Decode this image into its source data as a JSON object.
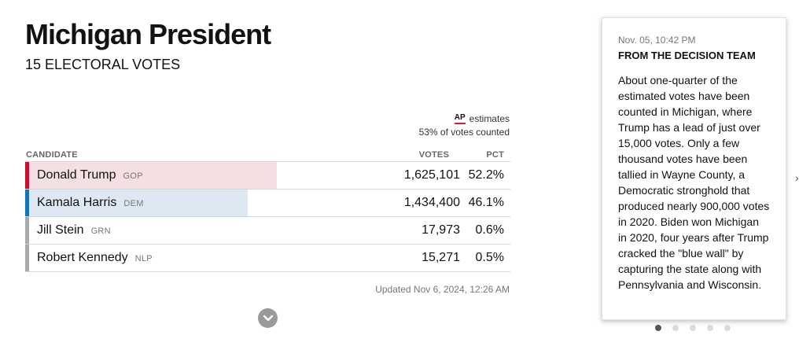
{
  "race": {
    "title": "Michigan President",
    "subtitle": "15 ELECTORAL VOTES"
  },
  "meta": {
    "ap_logo": "AP",
    "estimates_label": "estimates",
    "votes_counted": "53% of votes counted",
    "updated": "Updated Nov 6, 2024, 12:26 AM"
  },
  "table": {
    "headers": {
      "candidate": "CANDIDATE",
      "votes": "VOTES",
      "pct": "PCT"
    },
    "rows": [
      {
        "name": "Donald Trump",
        "party": "GOP",
        "votes": "1,625,101",
        "pct": "52.2%",
        "share": 0.522,
        "bar_color": "#f4dfe3",
        "stripe_color": "#c8102e"
      },
      {
        "name": "Kamala Harris",
        "party": "DEM",
        "votes": "1,434,400",
        "pct": "46.1%",
        "share": 0.461,
        "bar_color": "#dde8f2",
        "stripe_color": "#1375b7"
      },
      {
        "name": "Jill Stein",
        "party": "GRN",
        "votes": "17,973",
        "pct": "0.6%",
        "share": 0.006,
        "bar_color": "#ffffff",
        "stripe_color": "#aaaaaa"
      },
      {
        "name": "Robert Kennedy",
        "party": "NLP",
        "votes": "15,271",
        "pct": "0.5%",
        "share": 0.005,
        "bar_color": "#ffffff",
        "stripe_color": "#aaaaaa"
      }
    ]
  },
  "icons": {
    "expand": "chevron-down-icon",
    "next": "chevron-right-icon"
  },
  "note_card": {
    "timestamp": "Nov. 05, 10:42 PM",
    "heading": "FROM THE DECISION TEAM",
    "body": "About one-quarter of the estimated votes have been counted in Michigan, where Trump has a lead of just over 15,000 votes. Only a few thousand votes have been tallied in Wayne County, a Democratic stronghold that produced nearly 900,000 votes in 2020. Biden won Michigan in 2020, four years after Trump cracked the \"blue wall\" by capturing the state along with Pennsylvania and Wisconsin.",
    "pagination": {
      "total": 5,
      "active": 1
    },
    "next_glyph": "›"
  }
}
